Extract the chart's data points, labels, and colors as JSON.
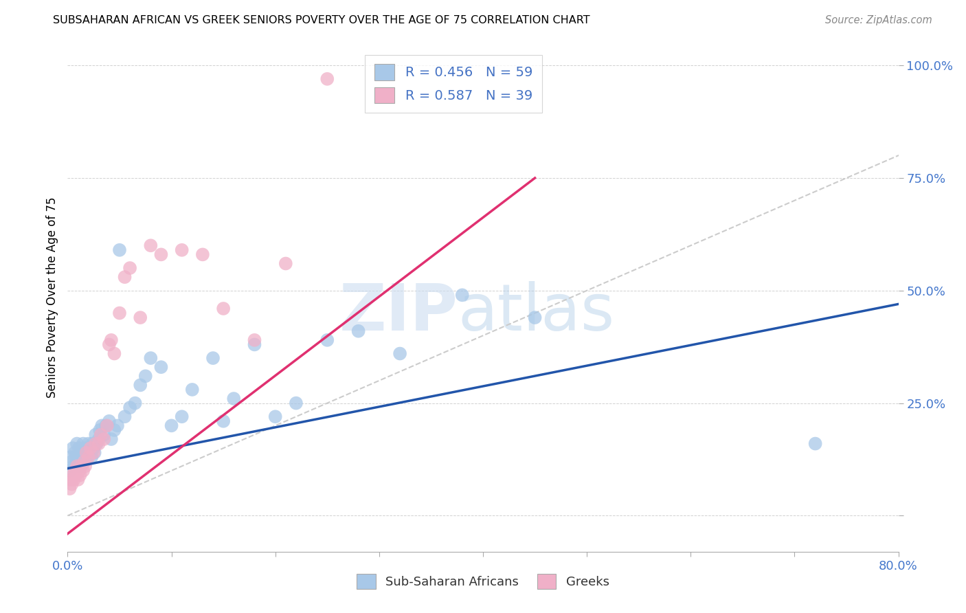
{
  "title": "SUBSAHARAN AFRICAN VS GREEK SENIORS POVERTY OVER THE AGE OF 75 CORRELATION CHART",
  "source": "Source: ZipAtlas.com",
  "ylabel": "Seniors Poverty Over the Age of 75",
  "xlim": [
    0.0,
    0.8
  ],
  "ylim": [
    -0.08,
    1.05
  ],
  "x_ticks": [
    0.0,
    0.1,
    0.2,
    0.3,
    0.4,
    0.5,
    0.6,
    0.7,
    0.8
  ],
  "y_ticks": [
    0.0,
    0.25,
    0.5,
    0.75,
    1.0
  ],
  "blue_R": 0.456,
  "blue_N": 59,
  "pink_R": 0.587,
  "pink_N": 39,
  "blue_label": "Sub-Saharan Africans",
  "pink_label": "Greeks",
  "blue_color": "#a8c8e8",
  "pink_color": "#f0b0c8",
  "blue_line_color": "#2255aa",
  "pink_line_color": "#e03070",
  "diagonal_color": "#cccccc",
  "watermark_zip": "ZIP",
  "watermark_atlas": "atlas",
  "blue_x": [
    0.002,
    0.003,
    0.004,
    0.005,
    0.006,
    0.007,
    0.008,
    0.009,
    0.01,
    0.011,
    0.012,
    0.013,
    0.014,
    0.015,
    0.016,
    0.017,
    0.018,
    0.019,
    0.02,
    0.021,
    0.022,
    0.023,
    0.024,
    0.025,
    0.026,
    0.027,
    0.028,
    0.03,
    0.031,
    0.033,
    0.035,
    0.037,
    0.04,
    0.042,
    0.045,
    0.048,
    0.05,
    0.055,
    0.06,
    0.065,
    0.07,
    0.075,
    0.08,
    0.09,
    0.1,
    0.11,
    0.12,
    0.14,
    0.15,
    0.16,
    0.18,
    0.2,
    0.22,
    0.25,
    0.28,
    0.32,
    0.38,
    0.45,
    0.72
  ],
  "blue_y": [
    0.1,
    0.13,
    0.12,
    0.15,
    0.11,
    0.14,
    0.13,
    0.16,
    0.12,
    0.15,
    0.11,
    0.14,
    0.13,
    0.16,
    0.12,
    0.15,
    0.14,
    0.13,
    0.16,
    0.15,
    0.14,
    0.13,
    0.16,
    0.15,
    0.14,
    0.18,
    0.16,
    0.17,
    0.19,
    0.2,
    0.18,
    0.2,
    0.21,
    0.17,
    0.19,
    0.2,
    0.59,
    0.22,
    0.24,
    0.25,
    0.29,
    0.31,
    0.35,
    0.33,
    0.2,
    0.22,
    0.28,
    0.35,
    0.21,
    0.26,
    0.38,
    0.22,
    0.25,
    0.39,
    0.41,
    0.36,
    0.49,
    0.44,
    0.16
  ],
  "pink_x": [
    0.002,
    0.003,
    0.004,
    0.005,
    0.006,
    0.007,
    0.008,
    0.009,
    0.01,
    0.011,
    0.012,
    0.013,
    0.015,
    0.016,
    0.017,
    0.018,
    0.02,
    0.022,
    0.025,
    0.027,
    0.03,
    0.032,
    0.035,
    0.038,
    0.04,
    0.042,
    0.045,
    0.05,
    0.055,
    0.06,
    0.07,
    0.08,
    0.09,
    0.11,
    0.13,
    0.15,
    0.18,
    0.21,
    0.25
  ],
  "pink_y": [
    0.06,
    0.08,
    0.07,
    0.09,
    0.08,
    0.1,
    0.09,
    0.11,
    0.08,
    0.1,
    0.09,
    0.11,
    0.1,
    0.12,
    0.11,
    0.14,
    0.13,
    0.15,
    0.14,
    0.16,
    0.16,
    0.18,
    0.17,
    0.2,
    0.38,
    0.39,
    0.36,
    0.45,
    0.53,
    0.55,
    0.44,
    0.6,
    0.58,
    0.59,
    0.58,
    0.46,
    0.39,
    0.56,
    0.97
  ],
  "blue_line_x": [
    0.0,
    0.8
  ],
  "blue_line_y": [
    0.105,
    0.47
  ],
  "pink_line_x": [
    0.0,
    0.45
  ],
  "pink_line_y": [
    -0.04,
    0.75
  ]
}
